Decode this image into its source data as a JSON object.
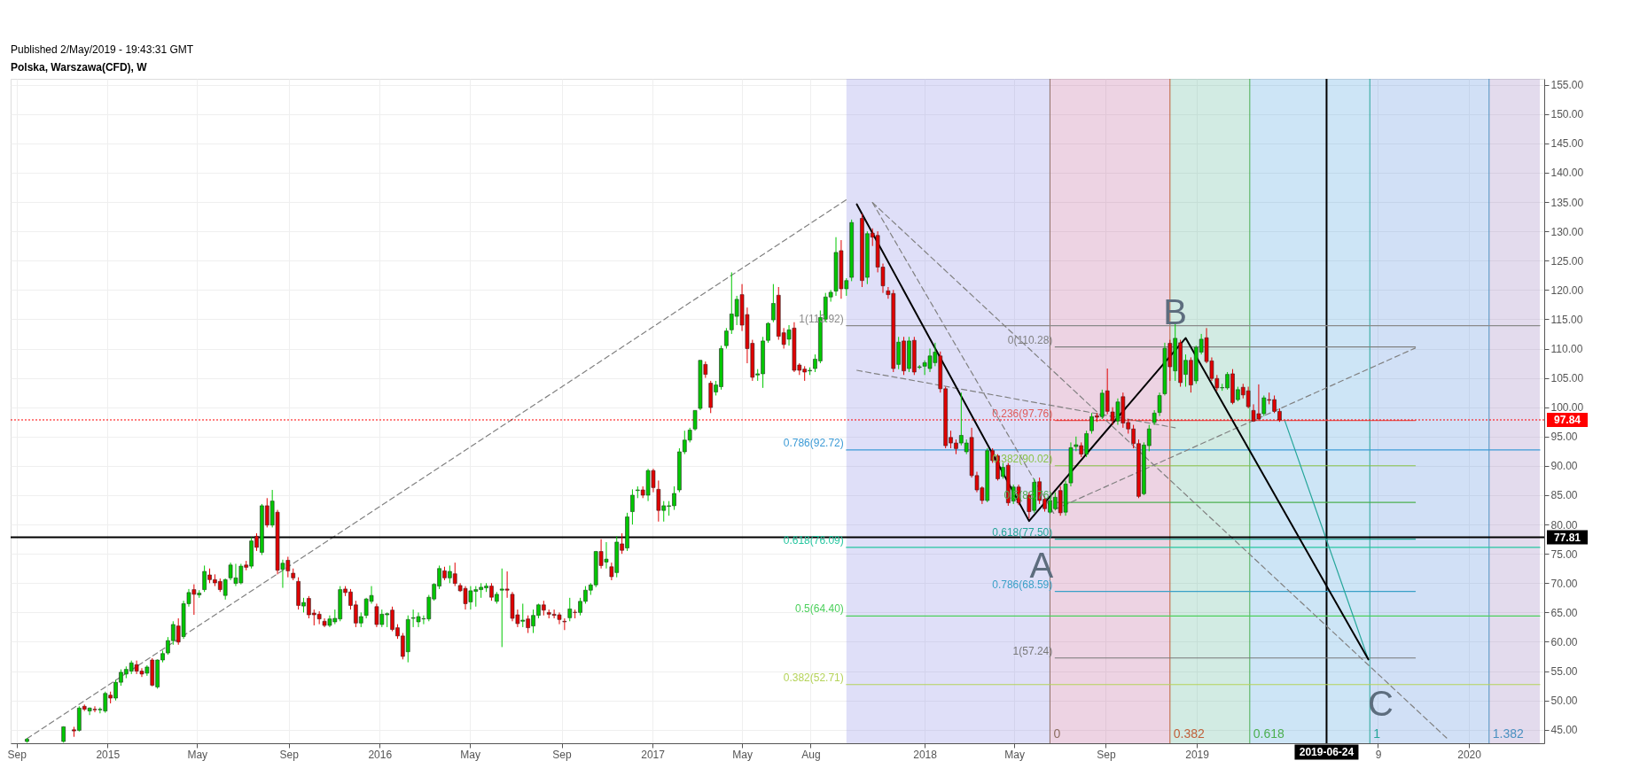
{
  "chart_data": {
    "type": "candlestick",
    "title": "Polska, Warszawa(CFD), W",
    "annotations": [
      "Published 2/May/2019 - 19:43:31 GMT",
      {
        "text": "A",
        "x": "2018-05-21",
        "y": 80.6
      },
      {
        "text": "B",
        "x": "2018-12-17",
        "y": 111.8
      },
      {
        "text": "C",
        "x": "2019-08-19",
        "y": 57.0
      }
    ],
    "xlim": [
      "2014-08-30",
      "2020-04-05"
    ],
    "xticks": [
      {
        "value": "2014-09-01",
        "label": "Sep"
      },
      {
        "value": "2015-01-01",
        "label": "2015"
      },
      {
        "value": "2015-05-01",
        "label": "May"
      },
      {
        "value": "2015-09-01",
        "label": "Sep"
      },
      {
        "value": "2016-01-01",
        "label": "2016"
      },
      {
        "value": "2016-05-01",
        "label": "May"
      },
      {
        "value": "2016-09-01",
        "label": "Sep"
      },
      {
        "value": "2017-01-01",
        "label": "2017"
      },
      {
        "value": "2017-05-01",
        "label": "May"
      },
      {
        "value": "2017-08-01",
        "label": "Aug"
      },
      {
        "value": "2018-01-01",
        "label": "2018"
      },
      {
        "value": "2018-05-01",
        "label": "May"
      },
      {
        "value": "2018-09-01",
        "label": "Sep"
      },
      {
        "value": "2019-01-01",
        "label": "2019"
      },
      {
        "value": "2019-09-01",
        "label": "9"
      },
      {
        "value": "2020-01-01",
        "label": "2020"
      }
    ],
    "ylim": [
      42.7,
      156.0
    ],
    "yticks": [
      {
        "value": 45,
        "label": "45.00"
      },
      {
        "value": 50,
        "label": "50.00"
      },
      {
        "value": 55,
        "label": "55.00"
      },
      {
        "value": 60,
        "label": "60.00"
      },
      {
        "value": 65,
        "label": "65.00"
      },
      {
        "value": 70,
        "label": "70.00"
      },
      {
        "value": 75,
        "label": "75.00"
      },
      {
        "value": 80,
        "label": "80.00"
      },
      {
        "value": 85,
        "label": "85.00"
      },
      {
        "value": 90,
        "label": "90.00"
      },
      {
        "value": 95,
        "label": "95.00"
      },
      {
        "value": 100,
        "label": "100.00"
      },
      {
        "value": 105,
        "label": "105.00"
      },
      {
        "value": 110,
        "label": "110.00"
      },
      {
        "value": 115,
        "label": "115.00"
      },
      {
        "value": 120,
        "label": "120.00"
      },
      {
        "value": 125,
        "label": "125.00"
      },
      {
        "value": 130,
        "label": "130.00"
      },
      {
        "value": 135,
        "label": "135.00"
      },
      {
        "value": 140,
        "label": "140.00"
      },
      {
        "value": 145,
        "label": "145.00"
      },
      {
        "value": 150,
        "label": "150.00"
      },
      {
        "value": 155,
        "label": "155.00"
      }
    ],
    "grid": true,
    "bands": [
      {
        "axis": "x",
        "from": "2017-09-18",
        "to": "2018-06-18",
        "color": "#8c8ce6"
      },
      {
        "axis": "x",
        "from": "2018-06-18",
        "to": "2018-11-26",
        "color": "#c0609a"
      },
      {
        "axis": "x",
        "from": "2018-11-26",
        "to": "2019-03-13",
        "color": "#5fb89a"
      },
      {
        "axis": "x",
        "from": "2019-03-13",
        "to": "2019-08-21",
        "color": "#4aa3df"
      },
      {
        "axis": "x",
        "from": "2019-08-21",
        "to": "2020-01-28",
        "color": "#5b8fe0"
      },
      {
        "axis": "x",
        "from": "2020-01-28",
        "to": "2020-04-05",
        "color": "#9a7fc0"
      }
    ],
    "ref_lines": [
      {
        "axis": "x",
        "value": "2018-06-18",
        "label": "0",
        "color": "#8d6e63"
      },
      {
        "axis": "x",
        "value": "2018-11-26",
        "label": "0.382",
        "color": "#c0603a"
      },
      {
        "axis": "x",
        "value": "2019-03-13",
        "label": "0.618",
        "color": "#4caf50"
      },
      {
        "axis": "x",
        "value": "2019-08-21",
        "label": "1",
        "color": "#26a69a"
      },
      {
        "axis": "x",
        "value": "2020-01-28",
        "label": "1.382",
        "color": "#4a90c0"
      },
      {
        "axis": "x",
        "value": "2019-06-24",
        "label": "2019-06-24",
        "color": "#000000"
      },
      {
        "axis": "y",
        "value": 97.84,
        "label": "97.84",
        "color": "#ff0000",
        "line_style": "dotted"
      },
      {
        "axis": "y",
        "value": 77.81,
        "label": "77.81",
        "color": "#000000"
      }
    ],
    "series": [
      {
        "type": "line",
        "name": "1(113.92)",
        "color": "#8a8a8a",
        "x": [
          "2017-09-18",
          "2020-04-05"
        ],
        "values": [
          113.92,
          113.92
        ]
      },
      {
        "type": "line",
        "name": "0.786(92.72)",
        "color": "#3d9bd6",
        "x": [
          "2017-09-18",
          "2020-04-05"
        ],
        "values": [
          92.72,
          92.72
        ]
      },
      {
        "type": "line",
        "name": "0.618(76.09)",
        "color": "#26c6a0",
        "x": [
          "2017-09-18",
          "2020-04-05"
        ],
        "values": [
          76.09,
          76.09
        ]
      },
      {
        "type": "line",
        "name": "0.5(64.40)",
        "color": "#4cd05c",
        "x": [
          "2017-09-18",
          "2020-04-05"
        ],
        "values": [
          64.4,
          64.4
        ]
      },
      {
        "type": "line",
        "name": "0.382(52.71)",
        "color": "#b5d35a",
        "x": [
          "2017-09-18",
          "2020-04-05"
        ],
        "values": [
          52.71,
          52.71
        ]
      },
      {
        "type": "line",
        "name": "0(110.28)",
        "color": "#808080",
        "x": [
          "2018-06-25",
          "2019-10-21"
        ],
        "values": [
          110.28,
          110.28
        ]
      },
      {
        "type": "line",
        "name": "0.236(97.76)",
        "color": "#e05a5a",
        "x": [
          "2018-06-25",
          "2019-10-21"
        ],
        "values": [
          97.76,
          97.76
        ]
      },
      {
        "type": "line",
        "name": "0.382(90.02)",
        "color": "#8bc34a",
        "x": [
          "2018-06-25",
          "2019-10-21"
        ],
        "values": [
          90.02,
          90.02
        ]
      },
      {
        "type": "line",
        "name": "0.5(83.76)",
        "color": "#4caf50",
        "x": [
          "2018-06-25",
          "2019-10-21"
        ],
        "values": [
          83.76,
          83.76
        ]
      },
      {
        "type": "line",
        "name": "0.618(77.50)",
        "color": "#26a69a",
        "x": [
          "2018-06-25",
          "2019-10-21"
        ],
        "values": [
          77.5,
          77.5
        ]
      },
      {
        "type": "line",
        "name": "0.786(68.59)",
        "color": "#3aa0c8",
        "x": [
          "2018-06-25",
          "2019-10-21"
        ],
        "values": [
          68.59,
          68.59
        ]
      },
      {
        "type": "line",
        "name": "1(57.24)",
        "color": "#787878",
        "x": [
          "2018-06-25",
          "2019-10-21"
        ],
        "values": [
          57.24,
          57.24
        ]
      },
      {
        "type": "line",
        "color": "#808080",
        "line_style": "dashed",
        "x": [
          "2014-09-15",
          "2017-09-18"
        ],
        "values": [
          43.5,
          135.4
        ]
      },
      {
        "type": "line",
        "color": "#808080",
        "line_style": "dashed",
        "x": [
          "2017-10-23",
          "2019-12-02"
        ],
        "values": [
          134.9,
          43.6
        ]
      },
      {
        "type": "line",
        "color": "#808080",
        "line_style": "dashed",
        "x": [
          "2017-10-02",
          "2018-12-03"
        ],
        "values": [
          106.3,
          96.5
        ]
      },
      {
        "type": "line",
        "color": "#808080",
        "line_style": "dashed",
        "x": [
          "2018-06-25",
          "2019-10-21"
        ],
        "values": [
          82.6,
          110.1
        ]
      },
      {
        "type": "line",
        "color": "#808080",
        "line_style": "dashed",
        "x": [
          "2017-10-23",
          "2018-06-25"
        ],
        "values": [
          134.9,
          81.5
        ]
      },
      {
        "type": "line",
        "color": "#26a69a",
        "x": [
          "2019-04-29",
          "2019-08-19"
        ],
        "values": [
          97.7,
          57.0
        ]
      },
      {
        "type": "line",
        "color": "#000000",
        "x": [
          "2017-10-02",
          "2018-05-21",
          "2018-12-17",
          "2019-08-19"
        ],
        "values": [
          134.6,
          80.6,
          111.8,
          57.0
        ]
      },
      {
        "color": "#00c800",
        "x": [
          "2014-09-15",
          "2014-11-03",
          "2014-11-24",
          "2014-12-08",
          "2014-12-22",
          "2014-12-29",
          "2015-01-12",
          "2015-01-19",
          "2015-01-26",
          "2015-02-02",
          "2015-02-23",
          "2015-03-09",
          "2015-03-16",
          "2015-03-23",
          "2015-03-30",
          "2015-04-13",
          "2015-04-20",
          "2015-05-04",
          "2015-05-11",
          "2015-06-08",
          "2015-06-15",
          "2015-06-22",
          "2015-06-29",
          "2015-07-13",
          "2015-07-27",
          "2015-08-10",
          "2015-08-24",
          "2015-09-21",
          "2015-10-26",
          "2015-11-02",
          "2015-11-09",
          "2015-12-07",
          "2015-12-14",
          "2015-12-21",
          "2016-01-04",
          "2016-01-11",
          "2016-02-08",
          "2016-02-15",
          "2016-02-22",
          "2016-02-29",
          "2016-03-07",
          "2016-03-14",
          "2016-03-21",
          "2016-04-04",
          "2016-05-02",
          "2016-05-09",
          "2016-05-16",
          "2016-05-23",
          "2016-06-06",
          "2016-06-13",
          "2016-07-11",
          "2016-07-25",
          "2016-08-01",
          "2016-09-12",
          "2016-09-26",
          "2016-10-03",
          "2016-10-10",
          "2016-10-17",
          "2016-10-31",
          "2016-11-14",
          "2016-11-28",
          "2016-12-05",
          "2016-12-12",
          "2016-12-26",
          "2017-01-16",
          "2017-01-23",
          "2017-01-30",
          "2017-02-06",
          "2017-02-13",
          "2017-02-20",
          "2017-02-27",
          "2017-03-06",
          "2017-03-27",
          "2017-04-03",
          "2017-04-10",
          "2017-04-17",
          "2017-04-24",
          "2017-05-22",
          "2017-05-29",
          "2017-06-05",
          "2017-06-12",
          "2017-07-03",
          "2017-07-31",
          "2017-08-07",
          "2017-08-14",
          "2017-08-21",
          "2017-08-28",
          "2017-09-04",
          "2017-09-18",
          "2017-09-25",
          "2017-10-16",
          "2017-11-27",
          "2017-12-11",
          "2017-12-25",
          "2018-01-01",
          "2018-01-08",
          "2018-01-15",
          "2018-02-19",
          "2018-02-26",
          "2018-03-26",
          "2018-04-16",
          "2018-04-30",
          "2018-05-28",
          "2018-06-18",
          "2018-06-25",
          "2018-07-09",
          "2018-07-16",
          "2018-07-23",
          "2018-08-06",
          "2018-08-13",
          "2018-08-27",
          "2018-09-17",
          "2018-10-22",
          "2018-10-29",
          "2018-11-05",
          "2018-11-12",
          "2018-11-19",
          "2018-12-03",
          "2018-12-17",
          "2018-12-31",
          "2019-01-07",
          "2019-02-04",
          "2019-02-11",
          "2019-02-25",
          "2019-04-01"
        ],
        "ohlc": [
          [
            43.0,
            43.6,
            42.8,
            43.4
          ],
          [
            43.0,
            45.6,
            42.8,
            45.5
          ],
          [
            44.9,
            49.0,
            44.7,
            48.7
          ],
          [
            48.2,
            48.8,
            47.5,
            48.7
          ],
          [
            48.4,
            48.8,
            47.8,
            48.5
          ],
          [
            48.2,
            51.5,
            47.9,
            51.2
          ],
          [
            50.4,
            53.5,
            50.0,
            53.1
          ],
          [
            53.1,
            55.3,
            52.5,
            54.8
          ],
          [
            54.5,
            55.8,
            53.8,
            55.3
          ],
          [
            55.0,
            56.8,
            54.5,
            56.4
          ],
          [
            54.65,
            56.0,
            54.2,
            55.7
          ],
          [
            52.3,
            57.0,
            52.0,
            56.9
          ],
          [
            56.9,
            58.5,
            56.5,
            58.0
          ],
          [
            58.1,
            60.8,
            57.8,
            60.2
          ],
          [
            60.2,
            63.5,
            59.5,
            62.95
          ],
          [
            60.9,
            67.0,
            60.5,
            66.5
          ],
          [
            66.5,
            69.0,
            66.0,
            68.4
          ],
          [
            68.0,
            68.8,
            67.5,
            68.3
          ],
          [
            68.9,
            73.0,
            68.5,
            72.0
          ],
          [
            67.9,
            70.8,
            67.2,
            70.6
          ],
          [
            70.9,
            73.5,
            70.5,
            73.1
          ],
          [
            69.95,
            73.3,
            69.5,
            70.9
          ],
          [
            70.05,
            73.3,
            69.8,
            72.9
          ],
          [
            72.9,
            77.8,
            72.5,
            77.2
          ],
          [
            75.25,
            83.5,
            74.8,
            83.2
          ],
          [
            79.9,
            85.9,
            79.5,
            84.0
          ],
          [
            72.35,
            74.0,
            69.2,
            73.4
          ],
          [
            66.1,
            67.5,
            65.0,
            66.7
          ],
          [
            62.8,
            64.5,
            62.5,
            63.9
          ],
          [
            63.4,
            65.5,
            63.0,
            64.0
          ],
          [
            63.9,
            69.5,
            63.5,
            68.9
          ],
          [
            63.2,
            65.0,
            62.5,
            64.3
          ],
          [
            64.5,
            67.5,
            64.0,
            67.3
          ],
          [
            66.9,
            69.5,
            66.5,
            67.9
          ],
          [
            62.95,
            65.5,
            62.5,
            64.7
          ],
          [
            64.6,
            65.0,
            62.5,
            64.8
          ],
          [
            58.3,
            64.5,
            56.5,
            63.8
          ],
          [
            64.0,
            65.5,
            62.5,
            64.1
          ],
          [
            63.4,
            65.0,
            62.5,
            64.3
          ],
          [
            63.9,
            64.5,
            63.0,
            63.95
          ],
          [
            63.9,
            68.0,
            63.5,
            67.6
          ],
          [
            67.3,
            70.0,
            67.0,
            69.8
          ],
          [
            69.5,
            73.0,
            69.0,
            72.5
          ],
          [
            70.9,
            73.0,
            70.0,
            72.0
          ],
          [
            66.8,
            69.5,
            65.5,
            68.7
          ],
          [
            68.6,
            69.5,
            66.0,
            68.9
          ],
          [
            68.9,
            70.0,
            67.5,
            69.3
          ],
          [
            69.2,
            70.0,
            68.5,
            69.5
          ],
          [
            66.9,
            68.5,
            66.5,
            68.1
          ],
          [
            68.8,
            72.5,
            59.1,
            69.0
          ],
          [
            63.5,
            66.5,
            62.5,
            63.7
          ],
          [
            62.7,
            65.5,
            61.5,
            64.5
          ],
          [
            64.5,
            66.5,
            64.0,
            66.3
          ],
          [
            64.1,
            67.5,
            63.5,
            65.6
          ],
          [
            65.0,
            67.5,
            64.5,
            66.9
          ],
          [
            66.9,
            69.5,
            66.5,
            68.8
          ],
          [
            68.8,
            70.0,
            68.0,
            69.7
          ],
          [
            69.7,
            75.5,
            69.3,
            75.4
          ],
          [
            73.6,
            77.0,
            72.5,
            74.1
          ],
          [
            71.8,
            78.0,
            71.0,
            77.0
          ],
          [
            76.0,
            82.0,
            75.5,
            81.3
          ],
          [
            82.2,
            86.0,
            80.0,
            85.0
          ],
          [
            85.8,
            86.5,
            84.5,
            85.9
          ],
          [
            85.0,
            89.5,
            84.0,
            89.2
          ],
          [
            82.4,
            84.0,
            80.5,
            83.2
          ],
          [
            83.1,
            84.0,
            81.5,
            83.2
          ],
          [
            83.2,
            86.5,
            82.5,
            85.3
          ],
          [
            85.9,
            93.0,
            85.5,
            92.4
          ],
          [
            92.4,
            96.0,
            92.0,
            94.4
          ],
          [
            94.4,
            96.5,
            94.0,
            96.1
          ],
          [
            96.3,
            99.5,
            96.0,
            99.45
          ],
          [
            99.8,
            108.0,
            99.5,
            108.0
          ],
          [
            102.6,
            104.5,
            102.0,
            103.8
          ],
          [
            103.5,
            110.5,
            103.0,
            110.0
          ],
          [
            110.5,
            113.5,
            110.0,
            113.0
          ],
          [
            113.2,
            123.0,
            112.5,
            115.9
          ],
          [
            115.5,
            119.0,
            114.0,
            118.4
          ],
          [
            105.5,
            106.5,
            104.5,
            105.7
          ],
          [
            105.7,
            112.0,
            103.3,
            111.3
          ],
          [
            111.4,
            114.5,
            111.0,
            114.3
          ],
          [
            114.9,
            121.0,
            114.5,
            117.7
          ],
          [
            111.6,
            114.0,
            110.5,
            113.2
          ],
          [
            106.2,
            106.8,
            105.5,
            106.3
          ],
          [
            106.6,
            109.0,
            106.0,
            108.2
          ],
          [
            107.9,
            116.5,
            107.5,
            115.3
          ],
          [
            115.0,
            119.5,
            114.5,
            118.8
          ],
          [
            118.8,
            120.0,
            118.0,
            119.6
          ],
          [
            119.8,
            129.0,
            119.0,
            126.4
          ],
          [
            120.2,
            122.0,
            119.0,
            121.6
          ],
          [
            122.15,
            132.0,
            121.5,
            131.5
          ],
          [
            122.15,
            130.0,
            121.0,
            129.6
          ],
          [
            107.3,
            112.0,
            106.5,
            111.1
          ],
          [
            106.6,
            112.0,
            106.0,
            111.3
          ],
          [
            106.8,
            107.2,
            106.5,
            106.9
          ],
          [
            107.0,
            108.0,
            105.5,
            107.6
          ],
          [
            106.6,
            110.0,
            106.0,
            108.75
          ],
          [
            107.6,
            111.0,
            107.0,
            109.4
          ],
          [
            93.9,
            102.5,
            93.5,
            95.2
          ],
          [
            92.4,
            94.5,
            92.0,
            93.9
          ],
          [
            84.1,
            93.0,
            83.8,
            92.6
          ],
          [
            88.2,
            90.5,
            87.8,
            89.75
          ],
          [
            84.0,
            86.8,
            83.5,
            86.4
          ],
          [
            82.4,
            87.8,
            82.0,
            87.2
          ],
          [
            82.1,
            84.5,
            81.8,
            84.1
          ],
          [
            82.7,
            85.5,
            82.4,
            84.65
          ],
          [
            82.1,
            87.5,
            81.5,
            86.9
          ],
          [
            87.1,
            94.0,
            86.5,
            93.1
          ],
          [
            93.3,
            95.0,
            92.5,
            93.6
          ],
          [
            92.0,
            96.0,
            91.5,
            95.5
          ],
          [
            96.0,
            99.0,
            95.5,
            98.4
          ],
          [
            98.4,
            103.0,
            98.0,
            102.4
          ],
          [
            97.65,
            101.5,
            97.0,
            100.9
          ],
          [
            85.25,
            94.0,
            85.0,
            93.55
          ],
          [
            93.45,
            97.0,
            92.5,
            96.3
          ],
          [
            97.4,
            99.5,
            97.0,
            99.0
          ],
          [
            99.1,
            102.5,
            98.5,
            102.0
          ],
          [
            102.3,
            111.0,
            102.0,
            110.05
          ],
          [
            106.2,
            114.3,
            104.5,
            111.75
          ],
          [
            105.6,
            109.0,
            103.5,
            108.0
          ],
          [
            104.5,
            110.5,
            104.0,
            110.2
          ],
          [
            109.4,
            112.5,
            109.0,
            111.6
          ],
          [
            103.3,
            104.0,
            102.8,
            103.35
          ],
          [
            103.3,
            106.0,
            103.0,
            105.6
          ],
          [
            101.3,
            103.5,
            101.0,
            103.0
          ],
          [
            98.9,
            102.0,
            98.5,
            101.6
          ]
        ]
      },
      {
        "color": "#e00000",
        "x": [
          "2014-11-17",
          "2014-12-01",
          "2014-12-15",
          "2015-01-05",
          "2015-02-09",
          "2015-02-16",
          "2015-03-02",
          "2015-04-06",
          "2015-04-27",
          "2015-05-18",
          "2015-05-25",
          "2015-06-01",
          "2015-07-06",
          "2015-07-20",
          "2015-08-03",
          "2015-08-17",
          "2015-08-31",
          "2015-09-07",
          "2015-09-14",
          "2015-09-28",
          "2015-10-05",
          "2015-10-12",
          "2015-10-19",
          "2015-11-16",
          "2015-11-23",
          "2015-11-30",
          "2015-12-28",
          "2016-01-18",
          "2016-01-25",
          "2016-02-01",
          "2016-03-28",
          "2016-04-11",
          "2016-04-18",
          "2016-04-25",
          "2016-05-30",
          "2016-06-20",
          "2016-06-27",
          "2016-07-04",
          "2016-07-18",
          "2016-08-08",
          "2016-08-15",
          "2016-08-22",
          "2016-08-29",
          "2016-09-05",
          "2016-09-19",
          "2016-10-24",
          "2016-11-07",
          "2016-11-21",
          "2016-12-19",
          "2017-01-02",
          "2017-01-09",
          "2017-03-13",
          "2017-03-20",
          "2017-05-01",
          "2017-05-08",
          "2017-05-15",
          "2017-06-19",
          "2017-06-26",
          "2017-07-10",
          "2017-07-17",
          "2017-07-24",
          "2017-09-11",
          "2017-10-09",
          "2017-10-23",
          "2017-10-30",
          "2017-11-06",
          "2017-11-13",
          "2017-11-20",
          "2017-12-04",
          "2017-12-18",
          "2018-01-22",
          "2018-01-29",
          "2018-02-05",
          "2018-02-12",
          "2018-03-05",
          "2018-03-12",
          "2018-03-19",
          "2018-04-02",
          "2018-04-09",
          "2018-04-23",
          "2018-05-07",
          "2018-05-21",
          "2018-06-04",
          "2018-06-11",
          "2018-07-02",
          "2018-07-30",
          "2018-08-20",
          "2018-09-03",
          "2018-09-10",
          "2018-09-24",
          "2018-10-01",
          "2018-10-08",
          "2018-10-15",
          "2018-11-26",
          "2018-12-10",
          "2018-12-24",
          "2019-01-14",
          "2019-01-21",
          "2019-01-28",
          "2019-02-18",
          "2019-03-04",
          "2019-03-11",
          "2019-03-18",
          "2019-03-25",
          "2019-04-08",
          "2019-04-15",
          "2019-04-22"
        ],
        "ohlc": [
          [
            45.0,
            45.5,
            43.8,
            44.8
          ],
          [
            49.0,
            49.3,
            48.2,
            48.5
          ],
          [
            48.5,
            49.0,
            48.0,
            48.4
          ],
          [
            50.9,
            51.5,
            49.5,
            50.4
          ],
          [
            56.1,
            56.8,
            54.5,
            55.0
          ],
          [
            55.0,
            55.5,
            54.0,
            54.5
          ],
          [
            56.9,
            57.2,
            52.4,
            52.6
          ],
          [
            62.7,
            64.0,
            59.5,
            59.95
          ],
          [
            68.9,
            69.8,
            64.6,
            68.1
          ],
          [
            71.4,
            72.5,
            70.0,
            70.6
          ],
          [
            70.6,
            71.5,
            69.5,
            70.05
          ],
          [
            70.3,
            70.8,
            68.5,
            68.9
          ],
          [
            73.1,
            73.8,
            72.2,
            72.7
          ],
          [
            78.0,
            78.5,
            75.5,
            76.1
          ],
          [
            83.2,
            84.5,
            79.5,
            79.9
          ],
          [
            82.1,
            82.5,
            71.5,
            72.2
          ],
          [
            73.9,
            74.5,
            71.0,
            72.1
          ],
          [
            71.7,
            72.5,
            70.5,
            70.9
          ],
          [
            70.3,
            71.0,
            65.5,
            66.2
          ],
          [
            67.4,
            67.8,
            64.0,
            64.6
          ],
          [
            64.9,
            65.5,
            62.8,
            64.6
          ],
          [
            64.7,
            65.2,
            63.0,
            63.9
          ],
          [
            63.5,
            64.0,
            62.5,
            62.8
          ],
          [
            69.0,
            69.5,
            67.8,
            68.4
          ],
          [
            68.5,
            69.0,
            65.5,
            66.2
          ],
          [
            66.3,
            67.0,
            62.5,
            63.2
          ],
          [
            66.0,
            66.5,
            62.5,
            62.95
          ],
          [
            65.4,
            66.0,
            61.8,
            62.1
          ],
          [
            62.4,
            63.0,
            60.5,
            61.0
          ],
          [
            61.0,
            61.5,
            57.0,
            57.5
          ],
          [
            72.1,
            72.8,
            70.5,
            70.9
          ],
          [
            71.6,
            73.5,
            69.5,
            69.95
          ],
          [
            69.6,
            70.0,
            68.5,
            68.7
          ],
          [
            69.1,
            69.5,
            65.5,
            66.5
          ],
          [
            69.5,
            70.0,
            67.0,
            67.6
          ],
          [
            69.0,
            72.0,
            67.5,
            68.8
          ],
          [
            68.1,
            68.5,
            63.5,
            64.0
          ],
          [
            64.6,
            65.5,
            62.5,
            63.1
          ],
          [
            63.9,
            64.5,
            61.5,
            62.4
          ],
          [
            66.3,
            67.0,
            64.5,
            65.4
          ],
          [
            65.0,
            65.5,
            64.0,
            64.7
          ],
          [
            64.7,
            65.5,
            64.0,
            64.5
          ],
          [
            64.6,
            65.0,
            63.0,
            63.8
          ],
          [
            63.5,
            64.0,
            62.0,
            63.4
          ],
          [
            65.05,
            65.5,
            64.0,
            65.0
          ],
          [
            75.4,
            77.5,
            72.5,
            73.0
          ],
          [
            72.8,
            73.5,
            70.5,
            71.1
          ],
          [
            76.7,
            78.5,
            75.0,
            75.6
          ],
          [
            85.9,
            86.5,
            84.5,
            85.0
          ],
          [
            89.2,
            89.5,
            85.5,
            86.3
          ],
          [
            86.0,
            87.5,
            80.5,
            82.4
          ],
          [
            107.3,
            107.8,
            105.0,
            105.6
          ],
          [
            104.1,
            104.5,
            99.0,
            99.96
          ],
          [
            119.2,
            121.0,
            113.0,
            114.0
          ],
          [
            115.8,
            117.0,
            107.5,
            110.0
          ],
          [
            110.9,
            111.5,
            104.5,
            105.1
          ],
          [
            119.1,
            120.5,
            111.5,
            112.1
          ],
          [
            112.7,
            113.5,
            110.0,
            110.7
          ],
          [
            113.5,
            114.5,
            106.0,
            106.3
          ],
          [
            107.2,
            107.5,
            105.5,
            106.3
          ],
          [
            106.5,
            107.0,
            104.5,
            106.0
          ],
          [
            126.7,
            128.5,
            118.5,
            120.2
          ],
          [
            132.2,
            133.0,
            120.5,
            121.6
          ],
          [
            129.7,
            130.5,
            127.5,
            129.0
          ],
          [
            129.3,
            130.0,
            123.0,
            123.9
          ],
          [
            123.9,
            124.5,
            119.5,
            120.7
          ],
          [
            119.85,
            120.5,
            118.5,
            119.2
          ],
          [
            119.4,
            120.0,
            106.0,
            106.6
          ],
          [
            111.3,
            112.0,
            105.5,
            106.2
          ],
          [
            111.4,
            112.0,
            105.5,
            106.0
          ],
          [
            108.75,
            109.5,
            102.5,
            103.15
          ],
          [
            103.15,
            103.5,
            93.0,
            93.45
          ],
          [
            94.85,
            96.0,
            93.0,
            93.9
          ],
          [
            93.9,
            94.5,
            92.0,
            92.95
          ],
          [
            94.85,
            96.5,
            88.0,
            88.35
          ],
          [
            88.35,
            89.0,
            85.5,
            85.9
          ],
          [
            86.25,
            86.5,
            83.5,
            84.1
          ],
          [
            92.6,
            93.0,
            90.5,
            90.9
          ],
          [
            91.7,
            92.0,
            87.5,
            87.8
          ],
          [
            90.1,
            90.5,
            83.2,
            83.7
          ],
          [
            86.4,
            86.8,
            83.3,
            83.7
          ],
          [
            85.0,
            85.5,
            81.0,
            82.2
          ],
          [
            87.3,
            88.0,
            83.5,
            84.1
          ],
          [
            84.3,
            84.8,
            82.2,
            82.7
          ],
          [
            85.8,
            86.5,
            81.5,
            82.0
          ],
          [
            93.45,
            94.0,
            91.5,
            92.0
          ],
          [
            98.55,
            99.0,
            97.5,
            98.3
          ],
          [
            102.8,
            106.6,
            98.8,
            99.3
          ],
          [
            99.2,
            100.0,
            97.0,
            97.7
          ],
          [
            101.8,
            102.5,
            96.5,
            97.3
          ],
          [
            97.4,
            98.0,
            95.5,
            96.3
          ],
          [
            96.3,
            97.0,
            93.0,
            93.8
          ],
          [
            93.8,
            94.5,
            84.5,
            84.8
          ],
          [
            110.9,
            111.5,
            104.5,
            106.9
          ],
          [
            111.0,
            111.5,
            103.5,
            104.2
          ],
          [
            108.0,
            108.5,
            102.5,
            103.8
          ],
          [
            111.85,
            113.5,
            107.5,
            107.8
          ],
          [
            107.9,
            108.5,
            104.5,
            104.9
          ],
          [
            104.9,
            105.5,
            102.8,
            103.3
          ],
          [
            105.7,
            106.5,
            100.5,
            100.8
          ],
          [
            103.4,
            104.0,
            101.5,
            102.1
          ],
          [
            102.8,
            103.5,
            99.8,
            100.1
          ],
          [
            99.45,
            100.5,
            97.5,
            97.65
          ],
          [
            98.9,
            103.9,
            97.8,
            98.0
          ],
          [
            101.3,
            102.5,
            100.5,
            101.2
          ],
          [
            101.3,
            102.0,
            99.0,
            99.3
          ],
          [
            99.3,
            99.8,
            97.5,
            97.84
          ]
        ]
      }
    ]
  }
}
